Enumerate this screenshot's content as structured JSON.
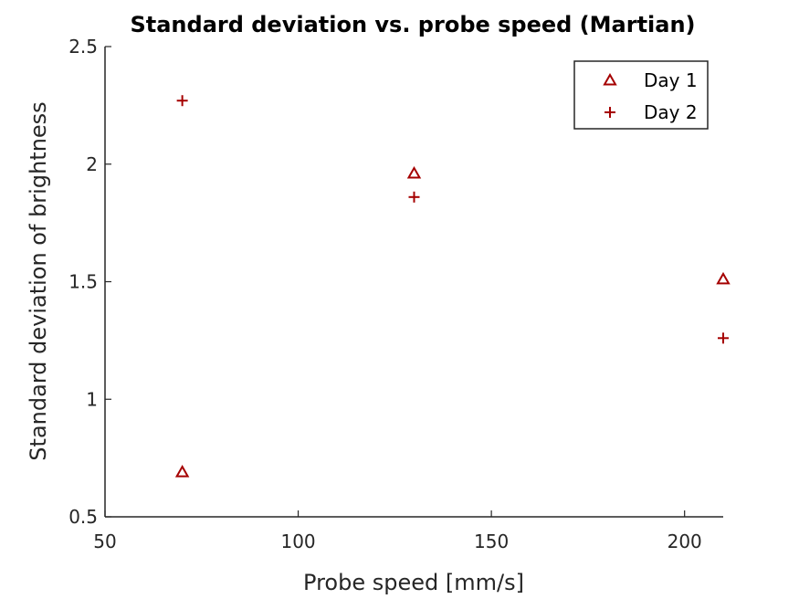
{
  "chart_data": {
    "type": "scatter",
    "title": "Standard deviation vs. probe speed (Martian)",
    "xlabel": "Probe speed [mm/s]",
    "ylabel": "Standard deviation of brightness",
    "xlim": [
      50,
      210
    ],
    "ylim": [
      0.5,
      2.5
    ],
    "xticks": [
      50,
      100,
      150,
      200
    ],
    "yticks": [
      0.5,
      1,
      1.5,
      2,
      2.5
    ],
    "xtick_labels": [
      "50",
      "100",
      "150",
      "200"
    ],
    "ytick_labels": [
      "0.5",
      "1",
      "1.5",
      "2",
      "2.5"
    ],
    "grid": false,
    "legend_position": "top-right",
    "series": [
      {
        "name": "Day 1",
        "marker": "triangle",
        "color": "#a50000",
        "x": [
          70,
          130,
          210
        ],
        "y": [
          0.69,
          1.96,
          1.51
        ]
      },
      {
        "name": "Day 2",
        "marker": "plus",
        "color": "#a50000",
        "x": [
          70,
          130,
          210
        ],
        "y": [
          2.27,
          1.86,
          1.26
        ]
      }
    ]
  }
}
